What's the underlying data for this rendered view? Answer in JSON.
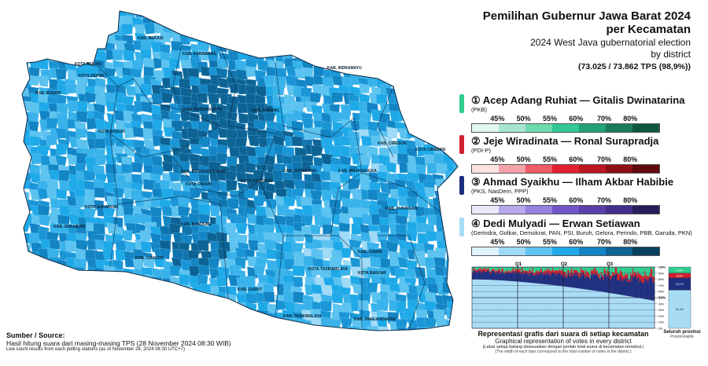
{
  "header": {
    "title_line1": "Pemilihan Gubernur Jawa Barat 2024",
    "title_line2": "per Kecamatan",
    "subtitle_line1": "2024 West Java gubernatorial election",
    "subtitle_line2": "by district",
    "tps_count": "(73.025 / 73.862 TPS (98,9%))"
  },
  "candidates": [
    {
      "number": "①",
      "name": "Acep Adang Ruhiat — Gitalis Dwinatarina",
      "parties": "(PKB)",
      "color": "#2ecc8f",
      "scale": [
        "#e3f7ef",
        "#a6e6cc",
        "#6fd9b0",
        "#34c994",
        "#22a275",
        "#1b7b57",
        "#0f583b"
      ]
    },
    {
      "number": "②",
      "name": "Jeje Wiradinata — Ronal Surapradja",
      "parties": "(PDI-P)",
      "color": "#d0202e",
      "scale": [
        "#fde2e4",
        "#f5a3aa",
        "#ec5b66",
        "#e11f2f",
        "#bb1521",
        "#8f0f19",
        "#5e0a10"
      ]
    },
    {
      "number": "③",
      "name": "Ahmad Syaikhu — Ilham Akbar Habibie",
      "parties": "(PKS, NasDem, PPP)",
      "color": "#1e2f80",
      "scale": [
        "#ebe7fb",
        "#b7a8ec",
        "#9482de",
        "#7056c9",
        "#5a3fa8",
        "#44308a",
        "#2a1d5c"
      ]
    },
    {
      "number": "④",
      "name": "Dedi Mulyadi — Erwan Setiawan",
      "parties": "(Gerindra, Golkar, Demokrat, PAN, PSI, Buruh, Gelora, Perindo, PBB, Garuda, PKN)",
      "color": "#a8dcf5",
      "scale": [
        "#dff3fd",
        "#9fdaf6",
        "#5cc3f0",
        "#1ea9e8",
        "#1384c4",
        "#0c6394",
        "#07405f"
      ]
    }
  ],
  "scale_labels": [
    "45%",
    "50%",
    "55%",
    "60%",
    "70%",
    "80%"
  ],
  "map_labels": [
    "KOTA BEKASI",
    "KOTA DEPOK",
    "KAB. BEKASI",
    "KAB. KARAWANG",
    "KAB. BOGOR",
    "KOTA BOGOR",
    "KAB. PURWAKARTA",
    "KAB. SUBANG",
    "KAB. INDRAMAYU",
    "KOTA CIREBON",
    "KAB. CIREBON",
    "KAB. MAJALENGKA",
    "KAB. SUMEDANG",
    "KAB. BANDUNG BARAT",
    "KOTA CIMAHI",
    "KOTA BANDUNG",
    "KOTA SUKABUMI",
    "KAB. SUKABUMI",
    "KAB. BANDUNG",
    "KAB. KUNINGAN",
    "KAB. CIANJUR",
    "KAB. CIAMIS",
    "KOTA TASIKMALAYA",
    "KOTA BANJAR",
    "KAB. GARUT",
    "KAB. TASIKMALAYA",
    "KAB. PANGANDARAN"
  ],
  "source": {
    "label": "Sumber / Source:",
    "line1": "Hasil hitung suara dari masing-masing TPS (28 November 2024 08:30 WIB)",
    "line2": "Live count results from each polling stations (as of November 28, 2024 08:30 UTC+7)"
  },
  "chart_data": {
    "type": "bar",
    "title": "Representasi grafis dari suara di setiap kecamatan",
    "subtitle": "Graphical representation of votes in every district",
    "note_id": "(Lebar setiap batang disesuaikan dengan jumlah total suara di kecamatan tersebut.)",
    "note_en": "(The width of each bars correspond to the total number of votes in the district.)",
    "quartile_labels": [
      "Q1",
      "Q2",
      "Q3"
    ],
    "y_ticks": [
      "100%",
      "90%",
      "80%",
      "70%",
      "60%",
      "50%",
      "40%",
      "30%",
      "20%",
      "10%",
      "0%"
    ],
    "ylim": [
      0,
      100
    ],
    "series_colors": [
      "#2ecc8f",
      "#d0202e",
      "#1e2f80",
      "#a8dcf5"
    ],
    "dedi_share_range": [
      80,
      45
    ],
    "provincewide": {
      "label": "Seluruh provinsi",
      "label_en": "Provincewide",
      "values": [
        9.9,
        8.0,
        19.7,
        62.4
      ],
      "value_labels": [
        "9,9%",
        "8,0%",
        "19,7%",
        "62,4%"
      ]
    }
  }
}
